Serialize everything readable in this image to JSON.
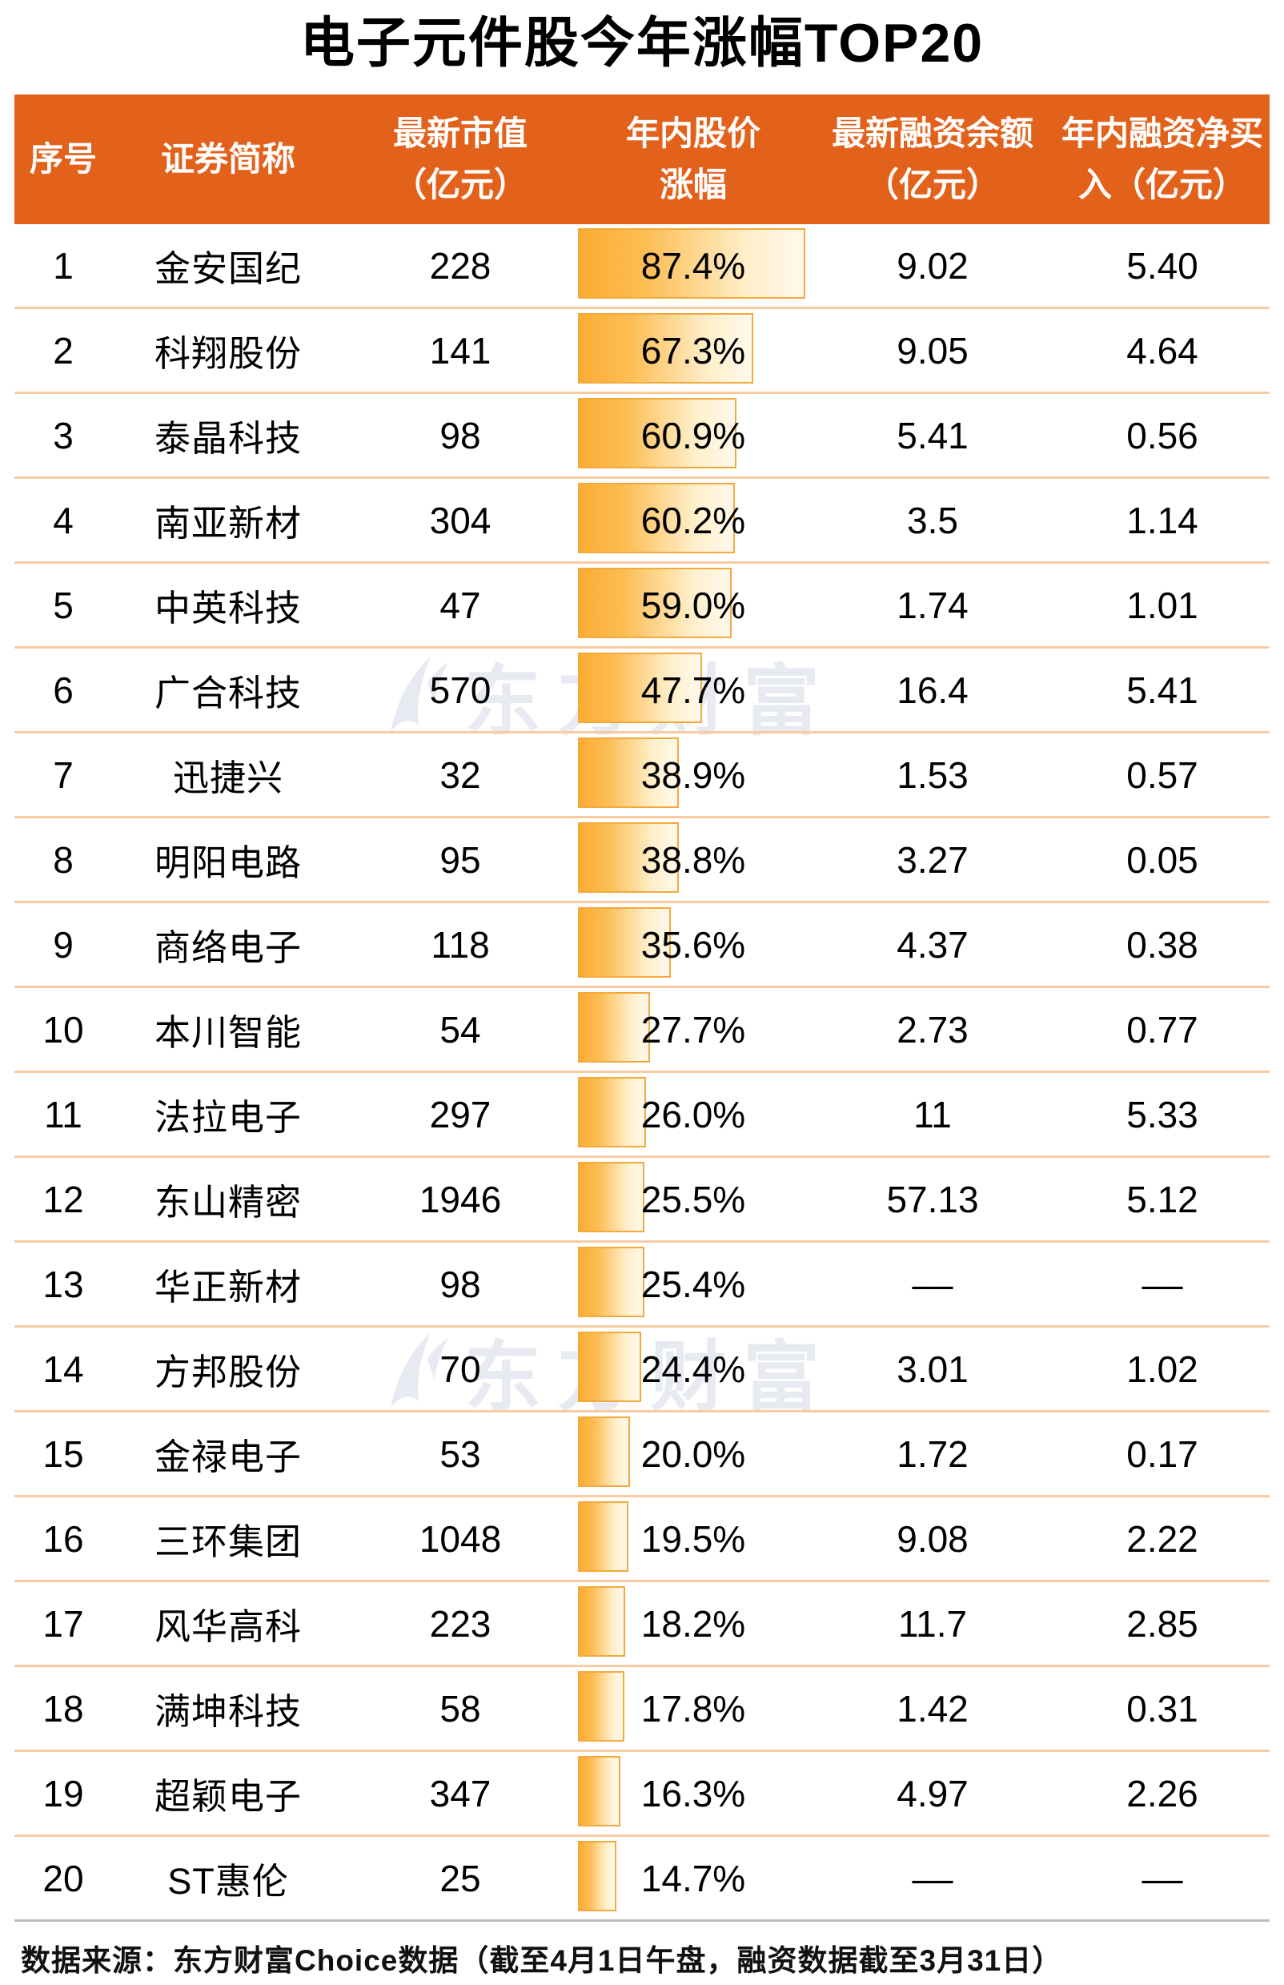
{
  "title": "电子元件股今年涨幅TOP20",
  "watermark": {
    "text": "东方财富",
    "logo": "eastmoney-swoosh-logo",
    "color": "#E7EAF1"
  },
  "table": {
    "columns": [
      {
        "key": "rank",
        "line1": "序号"
      },
      {
        "key": "name",
        "line1": "证券简称"
      },
      {
        "key": "cap",
        "line1": "最新市值",
        "line2": "（亿元）"
      },
      {
        "key": "pct",
        "line1": "年内股价",
        "line2": "涨幅"
      },
      {
        "key": "balance",
        "line1": "最新融资余额",
        "line2": "（亿元）"
      },
      {
        "key": "net",
        "line1": "年内融资净买",
        "line2": "入（亿元）"
      }
    ],
    "rows": [
      {
        "rank": "1",
        "name": "金安国纪",
        "cap": "228",
        "pct": "87.4%",
        "pct_value": 87.4,
        "balance": "9.02",
        "net": "5.40"
      },
      {
        "rank": "2",
        "name": "科翔股份",
        "cap": "141",
        "pct": "67.3%",
        "pct_value": 67.3,
        "balance": "9.05",
        "net": "4.64"
      },
      {
        "rank": "3",
        "name": "泰晶科技",
        "cap": "98",
        "pct": "60.9%",
        "pct_value": 60.9,
        "balance": "5.41",
        "net": "0.56"
      },
      {
        "rank": "4",
        "name": "南亚新材",
        "cap": "304",
        "pct": "60.2%",
        "pct_value": 60.2,
        "balance": "3.5",
        "net": "1.14"
      },
      {
        "rank": "5",
        "name": "中英科技",
        "cap": "47",
        "pct": "59.0%",
        "pct_value": 59.0,
        "balance": "1.74",
        "net": "1.01"
      },
      {
        "rank": "6",
        "name": "广合科技",
        "cap": "570",
        "pct": "47.7%",
        "pct_value": 47.7,
        "balance": "16.4",
        "net": "5.41"
      },
      {
        "rank": "7",
        "name": "迅捷兴",
        "cap": "32",
        "pct": "38.9%",
        "pct_value": 38.9,
        "balance": "1.53",
        "net": "0.57"
      },
      {
        "rank": "8",
        "name": "明阳电路",
        "cap": "95",
        "pct": "38.8%",
        "pct_value": 38.8,
        "balance": "3.27",
        "net": "0.05"
      },
      {
        "rank": "9",
        "name": "商络电子",
        "cap": "118",
        "pct": "35.6%",
        "pct_value": 35.6,
        "balance": "4.37",
        "net": "0.38"
      },
      {
        "rank": "10",
        "name": "本川智能",
        "cap": "54",
        "pct": "27.7%",
        "pct_value": 27.7,
        "balance": "2.73",
        "net": "0.77"
      },
      {
        "rank": "11",
        "name": "法拉电子",
        "cap": "297",
        "pct": "26.0%",
        "pct_value": 26.0,
        "balance": "11",
        "net": "5.33"
      },
      {
        "rank": "12",
        "name": "东山精密",
        "cap": "1946",
        "pct": "25.5%",
        "pct_value": 25.5,
        "balance": "57.13",
        "net": "5.12"
      },
      {
        "rank": "13",
        "name": "华正新材",
        "cap": "98",
        "pct": "25.4%",
        "pct_value": 25.4,
        "balance": "––",
        "net": "––"
      },
      {
        "rank": "14",
        "name": "方邦股份",
        "cap": "70",
        "pct": "24.4%",
        "pct_value": 24.4,
        "balance": "3.01",
        "net": "1.02"
      },
      {
        "rank": "15",
        "name": "金禄电子",
        "cap": "53",
        "pct": "20.0%",
        "pct_value": 20.0,
        "balance": "1.72",
        "net": "0.17"
      },
      {
        "rank": "16",
        "name": "三环集团",
        "cap": "1048",
        "pct": "19.5%",
        "pct_value": 19.5,
        "balance": "9.08",
        "net": "2.22"
      },
      {
        "rank": "17",
        "name": "风华高科",
        "cap": "223",
        "pct": "18.2%",
        "pct_value": 18.2,
        "balance": "11.7",
        "net": "2.85"
      },
      {
        "rank": "18",
        "name": "满坤科技",
        "cap": "58",
        "pct": "17.8%",
        "pct_value": 17.8,
        "balance": "1.42",
        "net": "0.31"
      },
      {
        "rank": "19",
        "name": "超颖电子",
        "cap": "347",
        "pct": "16.3%",
        "pct_value": 16.3,
        "balance": "4.97",
        "net": "2.26"
      },
      {
        "rank": "20",
        "name": "ST惠伦",
        "cap": "25",
        "pct": "14.7%",
        "pct_value": 14.7,
        "balance": "––",
        "net": "––"
      }
    ]
  },
  "footer": "数据来源：东方财富Choice数据（截至4月1日午盘，融资数据截至3月31日）",
  "colors": {
    "header_bg": "#E2621C",
    "row_divider": "#F8CBA2",
    "table_bottom_border": "#C2BAB4",
    "bar_fill_start": "#FBAC33",
    "bar_fill_end": "#FFF9EC",
    "bar_border": "#F5A93B",
    "watermark": "#E7EAF1",
    "title_text": "#000000",
    "header_text": "#FFFFFF"
  },
  "chart_data": {
    "type": "table",
    "title": "电子元件股今年涨幅TOP20",
    "columns": [
      "序号",
      "证券简称",
      "最新市值（亿元）",
      "年内股价涨幅",
      "最新融资余额（亿元）",
      "年内融资净买入（亿元）"
    ],
    "rows": [
      [
        1,
        "金安国纪",
        228,
        87.4,
        9.02,
        5.4
      ],
      [
        2,
        "科翔股份",
        141,
        67.3,
        9.05,
        4.64
      ],
      [
        3,
        "泰晶科技",
        98,
        60.9,
        5.41,
        0.56
      ],
      [
        4,
        "南亚新材",
        304,
        60.2,
        3.5,
        1.14
      ],
      [
        5,
        "中英科技",
        47,
        59.0,
        1.74,
        1.01
      ],
      [
        6,
        "广合科技",
        570,
        47.7,
        16.4,
        5.41
      ],
      [
        7,
        "迅捷兴",
        32,
        38.9,
        1.53,
        0.57
      ],
      [
        8,
        "明阳电路",
        95,
        38.8,
        3.27,
        0.05
      ],
      [
        9,
        "商络电子",
        118,
        35.6,
        4.37,
        0.38
      ],
      [
        10,
        "本川智能",
        54,
        27.7,
        2.73,
        0.77
      ],
      [
        11,
        "法拉电子",
        297,
        26.0,
        11,
        5.33
      ],
      [
        12,
        "东山精密",
        1946,
        25.5,
        57.13,
        5.12
      ],
      [
        13,
        "华正新材",
        98,
        25.4,
        null,
        null
      ],
      [
        14,
        "方邦股份",
        70,
        24.4,
        3.01,
        1.02
      ],
      [
        15,
        "金禄电子",
        53,
        20.0,
        1.72,
        0.17
      ],
      [
        16,
        "三环集团",
        1048,
        19.5,
        9.08,
        2.22
      ],
      [
        17,
        "风华高科",
        223,
        18.2,
        11.7,
        2.85
      ],
      [
        18,
        "满坤科技",
        58,
        17.8,
        1.42,
        0.31
      ],
      [
        19,
        "超颖电子",
        347,
        16.3,
        4.97,
        2.26
      ],
      [
        20,
        "ST惠伦",
        25,
        14.7,
        null,
        null
      ]
    ],
    "bar_column": "年内股价涨幅",
    "bar_values_percent": [
      87.4,
      67.3,
      60.9,
      60.2,
      59.0,
      47.7,
      38.9,
      38.8,
      35.6,
      27.7,
      26.0,
      25.5,
      25.4,
      24.4,
      20.0,
      19.5,
      18.2,
      17.8,
      16.3,
      14.7
    ],
    "source": "数据来源：东方财富Choice数据（截至4月1日午盘，融资数据截至3月31日）"
  }
}
